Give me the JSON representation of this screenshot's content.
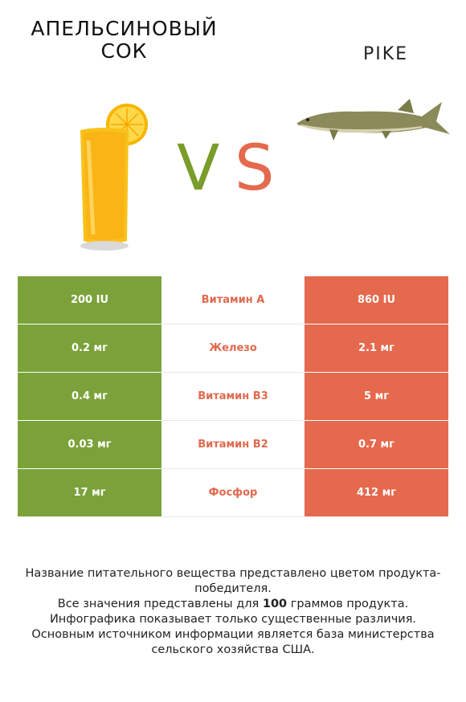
{
  "left_title": "АПЕЛЬСИНОВЫЙ СОК",
  "right_title": "PIKE",
  "vs": {
    "v": "V",
    "s": "S"
  },
  "colors": {
    "left": "#7ba23a",
    "right": "#e5694d",
    "mid_text": "#e06a4e"
  },
  "rows": [
    {
      "left": "200 IU",
      "nutrient": "Витамин A",
      "right": "860 IU"
    },
    {
      "left": "0.2 мг",
      "nutrient": "Железо",
      "right": "2.1 мг"
    },
    {
      "left": "0.4 мг",
      "nutrient": "Витамин B3",
      "right": "5 мг"
    },
    {
      "left": "0.03 мг",
      "nutrient": "Витамин B2",
      "right": "0.7 мг"
    },
    {
      "left": "17 мг",
      "nutrient": "Фосфор",
      "right": "412 мг"
    }
  ],
  "footer": {
    "line1": "Название питательного вещества представлено цветом продукта-победителя.",
    "line2a": "Все значения представлены для ",
    "line2b": "100",
    "line2c": " граммов продукта.",
    "line3": "Инфографика показывает только существенные различия.",
    "line4": "Основным источником информации является база министерства сельского хозяйства США."
  }
}
